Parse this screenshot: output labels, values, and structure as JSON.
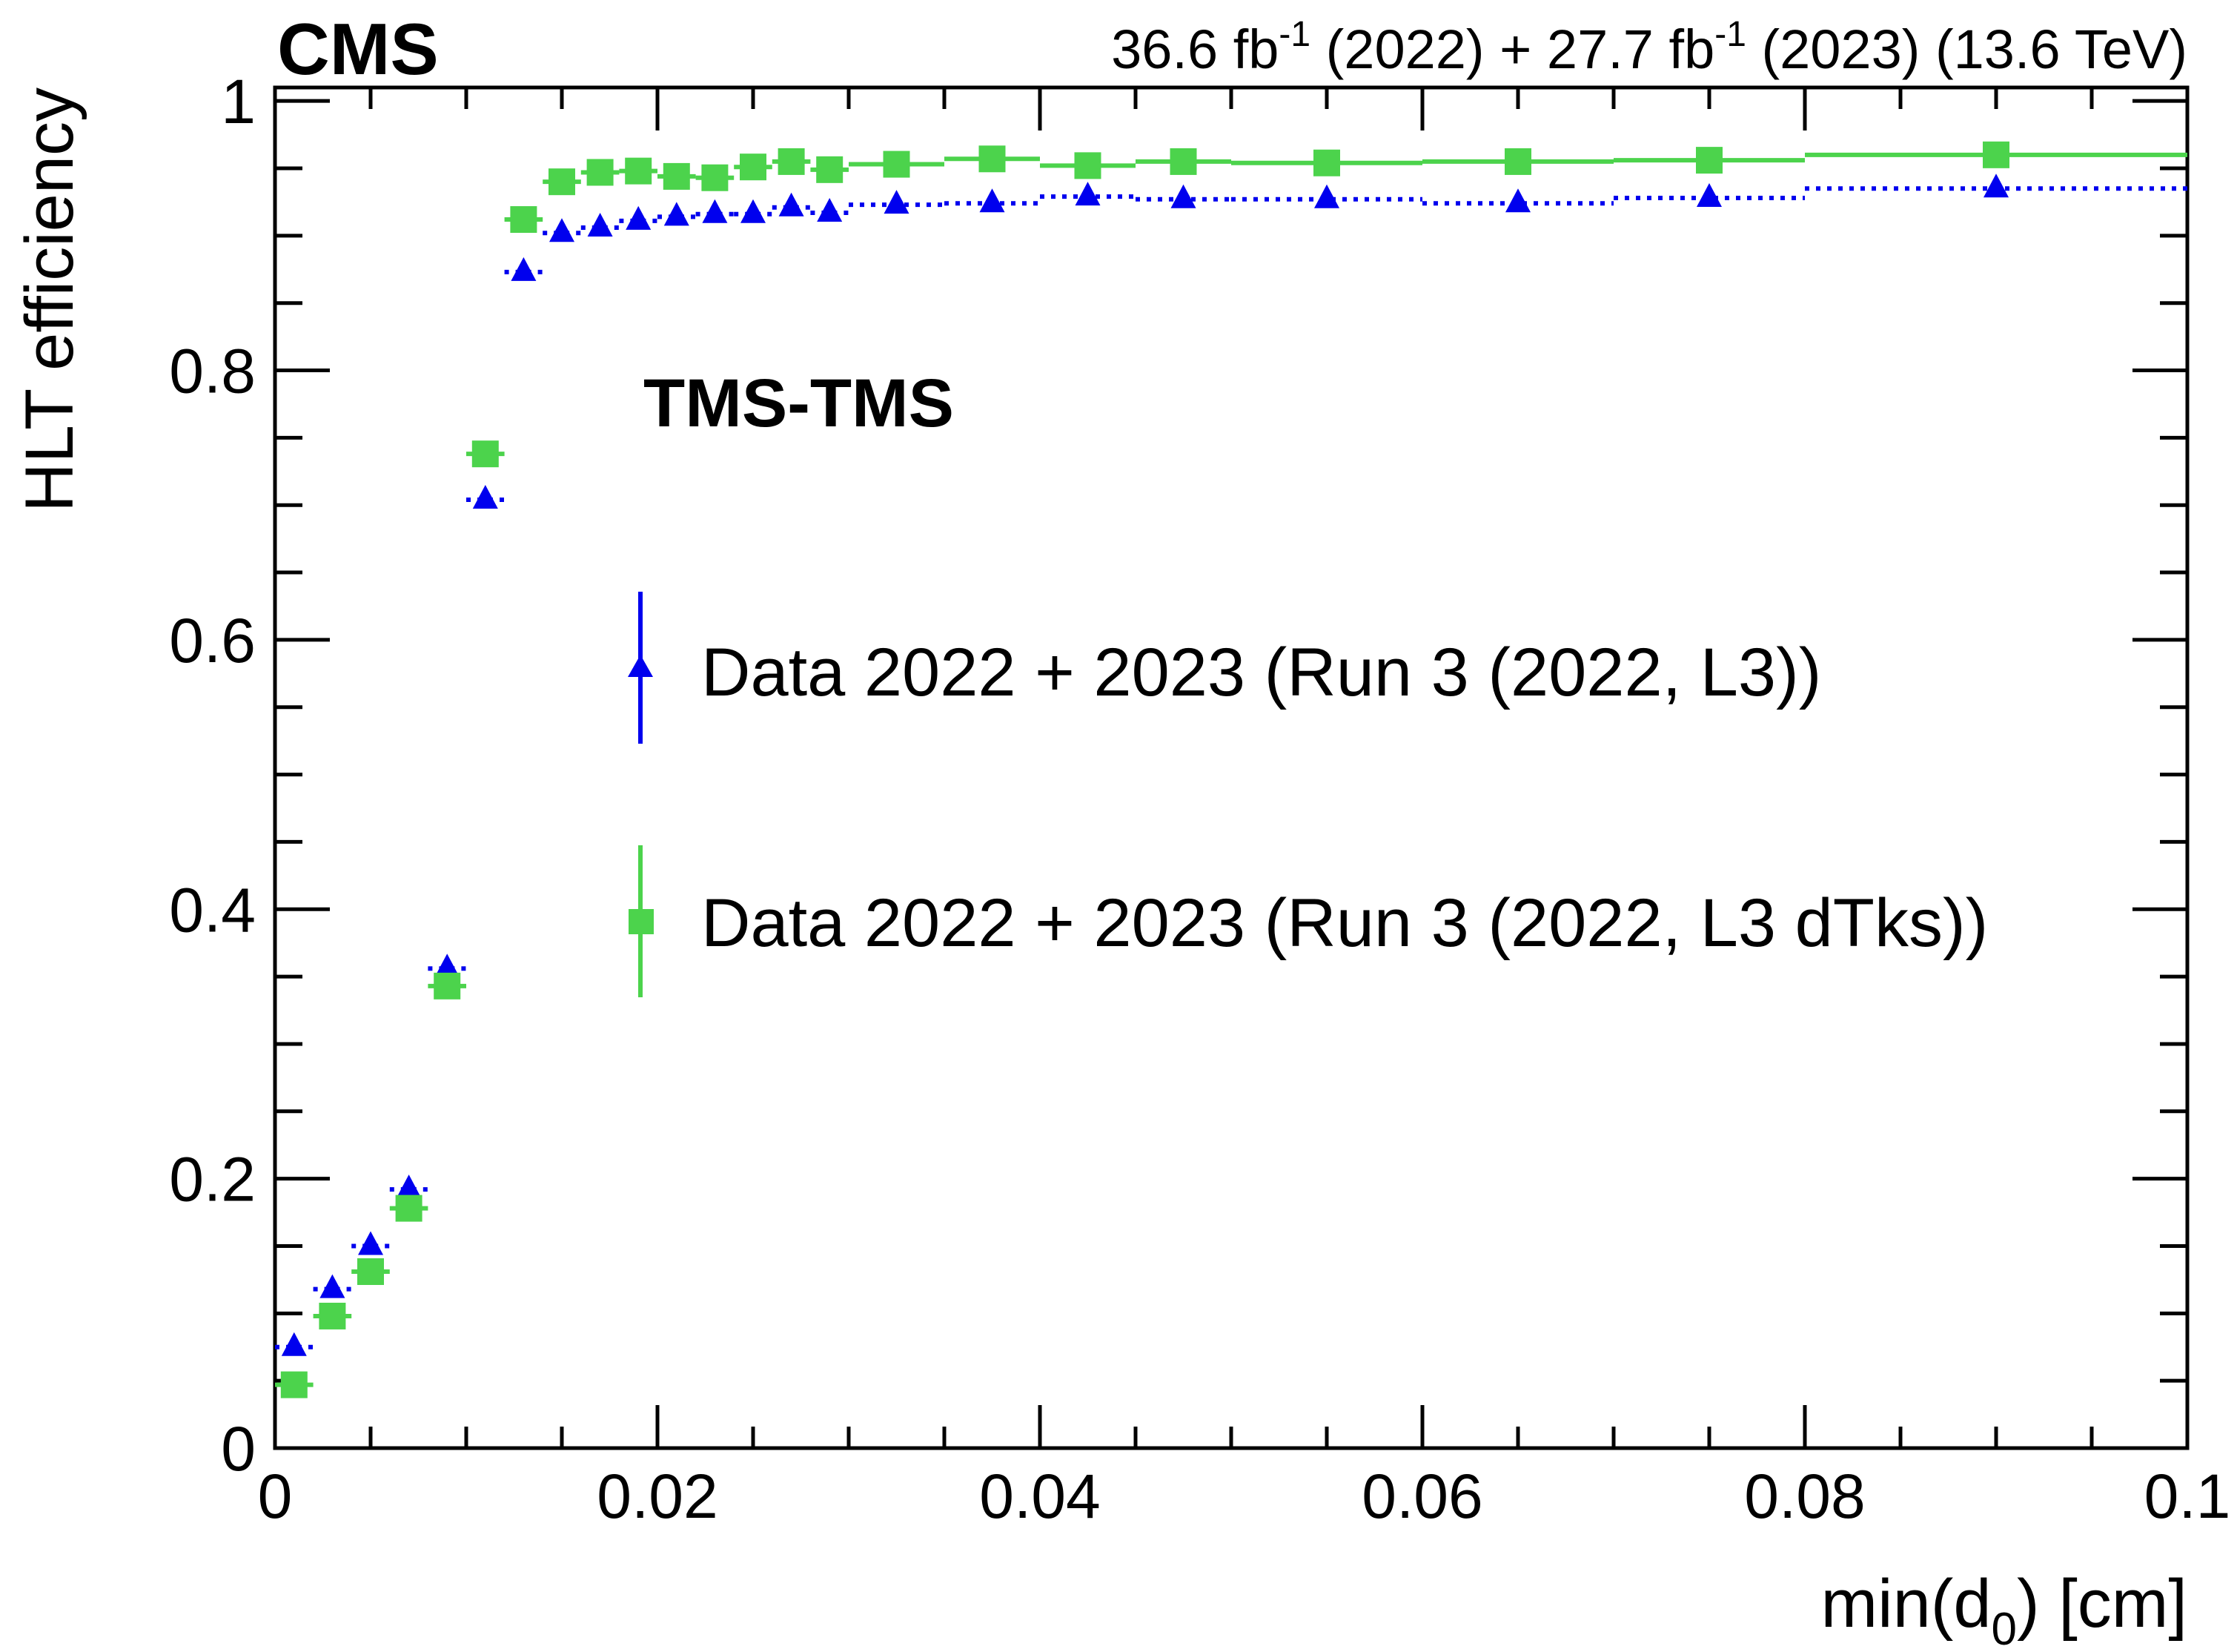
{
  "chart_data": {
    "type": "scatter",
    "experiment_label": "CMS",
    "lumi_label": {
      "lumi_2022": "36.6 fb",
      "lumi_2023": "27.7 fb",
      "inverse": "-1",
      "year_2022": " (2022) + ",
      "year_2023": " (2023) (13.6 TeV)"
    },
    "category_label": "TMS-TMS",
    "xlabel": {
      "main": "min(d",
      "sub": "0",
      "tail": ") [cm]"
    },
    "ylabel": "HLT efficiency",
    "xlim": [
      0,
      0.1
    ],
    "ylim": [
      0,
      1.01
    ],
    "x_ticks": [
      {
        "value": 0,
        "label": "0"
      },
      {
        "value": 0.02,
        "label": "0.02"
      },
      {
        "value": 0.04,
        "label": "0.04"
      },
      {
        "value": 0.06,
        "label": "0.06"
      },
      {
        "value": 0.08,
        "label": "0.08"
      },
      {
        "value": 0.1,
        "label": "0.1"
      }
    ],
    "y_ticks": [
      {
        "value": 0,
        "label": "0"
      },
      {
        "value": 0.2,
        "label": "0.2"
      },
      {
        "value": 0.4,
        "label": "0.4"
      },
      {
        "value": 0.6,
        "label": "0.6"
      },
      {
        "value": 0.8,
        "label": "0.8"
      },
      {
        "value": 1,
        "label": "1"
      }
    ],
    "series": [
      {
        "name": "Data 2022 + 2023 (Run 3 (2022, L3))",
        "color": "#0000ee",
        "marker": "triangle",
        "line_style": "dotted",
        "points": [
          {
            "x0": 0.0,
            "x1": 0.002,
            "y": 0.075
          },
          {
            "x0": 0.002,
            "x1": 0.004,
            "y": 0.118
          },
          {
            "x0": 0.004,
            "x1": 0.006,
            "y": 0.15
          },
          {
            "x0": 0.006,
            "x1": 0.008,
            "y": 0.192
          },
          {
            "x0": 0.008,
            "x1": 0.01,
            "y": 0.356
          },
          {
            "x0": 0.01,
            "x1": 0.012,
            "y": 0.704
          },
          {
            "x0": 0.012,
            "x1": 0.014,
            "y": 0.873
          },
          {
            "x0": 0.014,
            "x1": 0.016,
            "y": 0.902
          },
          {
            "x0": 0.016,
            "x1": 0.018,
            "y": 0.906
          },
          {
            "x0": 0.018,
            "x1": 0.02,
            "y": 0.911
          },
          {
            "x0": 0.02,
            "x1": 0.022,
            "y": 0.914
          },
          {
            "x0": 0.022,
            "x1": 0.024,
            "y": 0.916
          },
          {
            "x0": 0.024,
            "x1": 0.026,
            "y": 0.916
          },
          {
            "x0": 0.026,
            "x1": 0.028,
            "y": 0.921
          },
          {
            "x0": 0.028,
            "x1": 0.03,
            "y": 0.917
          },
          {
            "x0": 0.03,
            "x1": 0.035,
            "y": 0.923
          },
          {
            "x0": 0.035,
            "x1": 0.04,
            "y": 0.924
          },
          {
            "x0": 0.04,
            "x1": 0.045,
            "y": 0.929
          },
          {
            "x0": 0.045,
            "x1": 0.05,
            "y": 0.927
          },
          {
            "x0": 0.05,
            "x1": 0.06,
            "y": 0.927
          },
          {
            "x0": 0.06,
            "x1": 0.07,
            "y": 0.924
          },
          {
            "x0": 0.07,
            "x1": 0.08,
            "y": 0.928
          },
          {
            "x0": 0.08,
            "x1": 0.1,
            "y": 0.935
          }
        ]
      },
      {
        "name": "Data 2022 + 2023 (Run 3 (2022, L3 dTks))",
        "color": "#4cd34c",
        "marker": "square",
        "line_style": "solid",
        "points": [
          {
            "x0": 0.0,
            "x1": 0.002,
            "y": 0.047
          },
          {
            "x0": 0.002,
            "x1": 0.004,
            "y": 0.098
          },
          {
            "x0": 0.004,
            "x1": 0.006,
            "y": 0.131
          },
          {
            "x0": 0.006,
            "x1": 0.008,
            "y": 0.178
          },
          {
            "x0": 0.008,
            "x1": 0.01,
            "y": 0.343
          },
          {
            "x0": 0.01,
            "x1": 0.012,
            "y": 0.738
          },
          {
            "x0": 0.012,
            "x1": 0.014,
            "y": 0.912
          },
          {
            "x0": 0.014,
            "x1": 0.016,
            "y": 0.94
          },
          {
            "x0": 0.016,
            "x1": 0.018,
            "y": 0.947
          },
          {
            "x0": 0.018,
            "x1": 0.02,
            "y": 0.948
          },
          {
            "x0": 0.02,
            "x1": 0.022,
            "y": 0.944
          },
          {
            "x0": 0.022,
            "x1": 0.024,
            "y": 0.943
          },
          {
            "x0": 0.024,
            "x1": 0.026,
            "y": 0.951
          },
          {
            "x0": 0.026,
            "x1": 0.028,
            "y": 0.955
          },
          {
            "x0": 0.028,
            "x1": 0.03,
            "y": 0.949
          },
          {
            "x0": 0.03,
            "x1": 0.035,
            "y": 0.953
          },
          {
            "x0": 0.035,
            "x1": 0.04,
            "y": 0.957
          },
          {
            "x0": 0.04,
            "x1": 0.045,
            "y": 0.952
          },
          {
            "x0": 0.045,
            "x1": 0.05,
            "y": 0.955
          },
          {
            "x0": 0.05,
            "x1": 0.06,
            "y": 0.954
          },
          {
            "x0": 0.06,
            "x1": 0.07,
            "y": 0.955
          },
          {
            "x0": 0.07,
            "x1": 0.08,
            "y": 0.956
          },
          {
            "x0": 0.08,
            "x1": 0.1,
            "y": 0.96
          }
        ]
      }
    ]
  }
}
